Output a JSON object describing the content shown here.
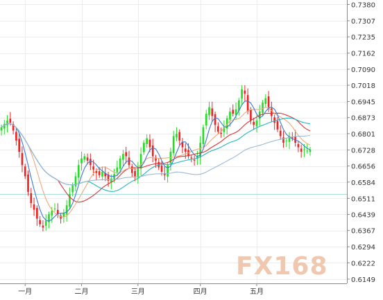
{
  "chart_data": {
    "type": "candlestick",
    "title": "",
    "xlabel": "",
    "ylabel": "",
    "ylim": [
      0.613,
      0.74
    ],
    "y_ticks": [
      0.738,
      0.7307,
      0.7235,
      0.7162,
      0.709,
      0.7018,
      0.6945,
      0.6873,
      0.6801,
      0.6728,
      0.6656,
      0.6584,
      0.6511,
      0.6439,
      0.6367,
      0.6294,
      0.6222,
      0.6149
    ],
    "y_tick_labels": [
      "0.7380",
      "0.7307",
      "0.7235",
      "0.7162",
      "0.7090",
      "0.7018",
      "0.6945",
      "0.6873",
      "0.6801",
      "0.6728",
      "0.6656",
      "0.6584",
      "0.6511",
      "0.6439",
      "0.6367",
      "0.6294",
      "0.6222",
      "0.6149"
    ],
    "x_ticks": [
      {
        "label": "一月",
        "index": 8
      },
      {
        "label": "二月",
        "index": 27
      },
      {
        "label": "三月",
        "index": 46
      },
      {
        "label": "四月",
        "index": 67
      },
      {
        "label": "五月",
        "index": 86
      }
    ],
    "reference_line": 0.653,
    "closes": [
      0.683,
      0.6845,
      0.686,
      0.685,
      0.6815,
      0.677,
      0.672,
      0.666,
      0.661,
      0.654,
      0.649,
      0.646,
      0.642,
      0.6395,
      0.638,
      0.641,
      0.644,
      0.6455,
      0.6465,
      0.644,
      0.642,
      0.6445,
      0.648,
      0.653,
      0.657,
      0.661,
      0.666,
      0.669,
      0.67,
      0.668,
      0.666,
      0.664,
      0.6625,
      0.6615,
      0.663,
      0.661,
      0.659,
      0.66,
      0.662,
      0.665,
      0.669,
      0.671,
      0.67,
      0.666,
      0.6625,
      0.661,
      0.665,
      0.671,
      0.676,
      0.678,
      0.674,
      0.67,
      0.668,
      0.665,
      0.663,
      0.6615,
      0.666,
      0.672,
      0.679,
      0.68,
      0.677,
      0.674,
      0.672,
      0.67,
      0.669,
      0.668,
      0.67,
      0.676,
      0.683,
      0.689,
      0.692,
      0.688,
      0.684,
      0.681,
      0.68,
      0.683,
      0.687,
      0.69,
      0.689,
      0.691,
      0.695,
      0.7,
      0.698,
      0.69,
      0.686,
      0.684,
      0.686,
      0.69,
      0.694,
      0.696,
      0.692,
      0.688,
      0.685,
      0.682,
      0.679,
      0.676,
      0.677,
      0.679,
      0.678,
      0.676,
      0.674,
      0.672,
      0.673,
      0.6725,
      0.673
    ],
    "series": [
      {
        "name": "",
        "color": "#e03030"
      },
      {
        "name": "",
        "color": "#f0a878"
      },
      {
        "name": "",
        "color": "#3878d8"
      },
      {
        "name": "",
        "color": "#20b8c0"
      },
      {
        "name": "",
        "color": "#98b8d8"
      }
    ],
    "up_color": "#22dd22",
    "down_color": "#ee2222",
    "reference_line_color": "#a8dcdc",
    "grid": true,
    "y_axis_position": "right"
  },
  "watermark": {
    "text": "FX168",
    "color": "#f0c8b0",
    "color_accent": "#b8c8d8"
  }
}
